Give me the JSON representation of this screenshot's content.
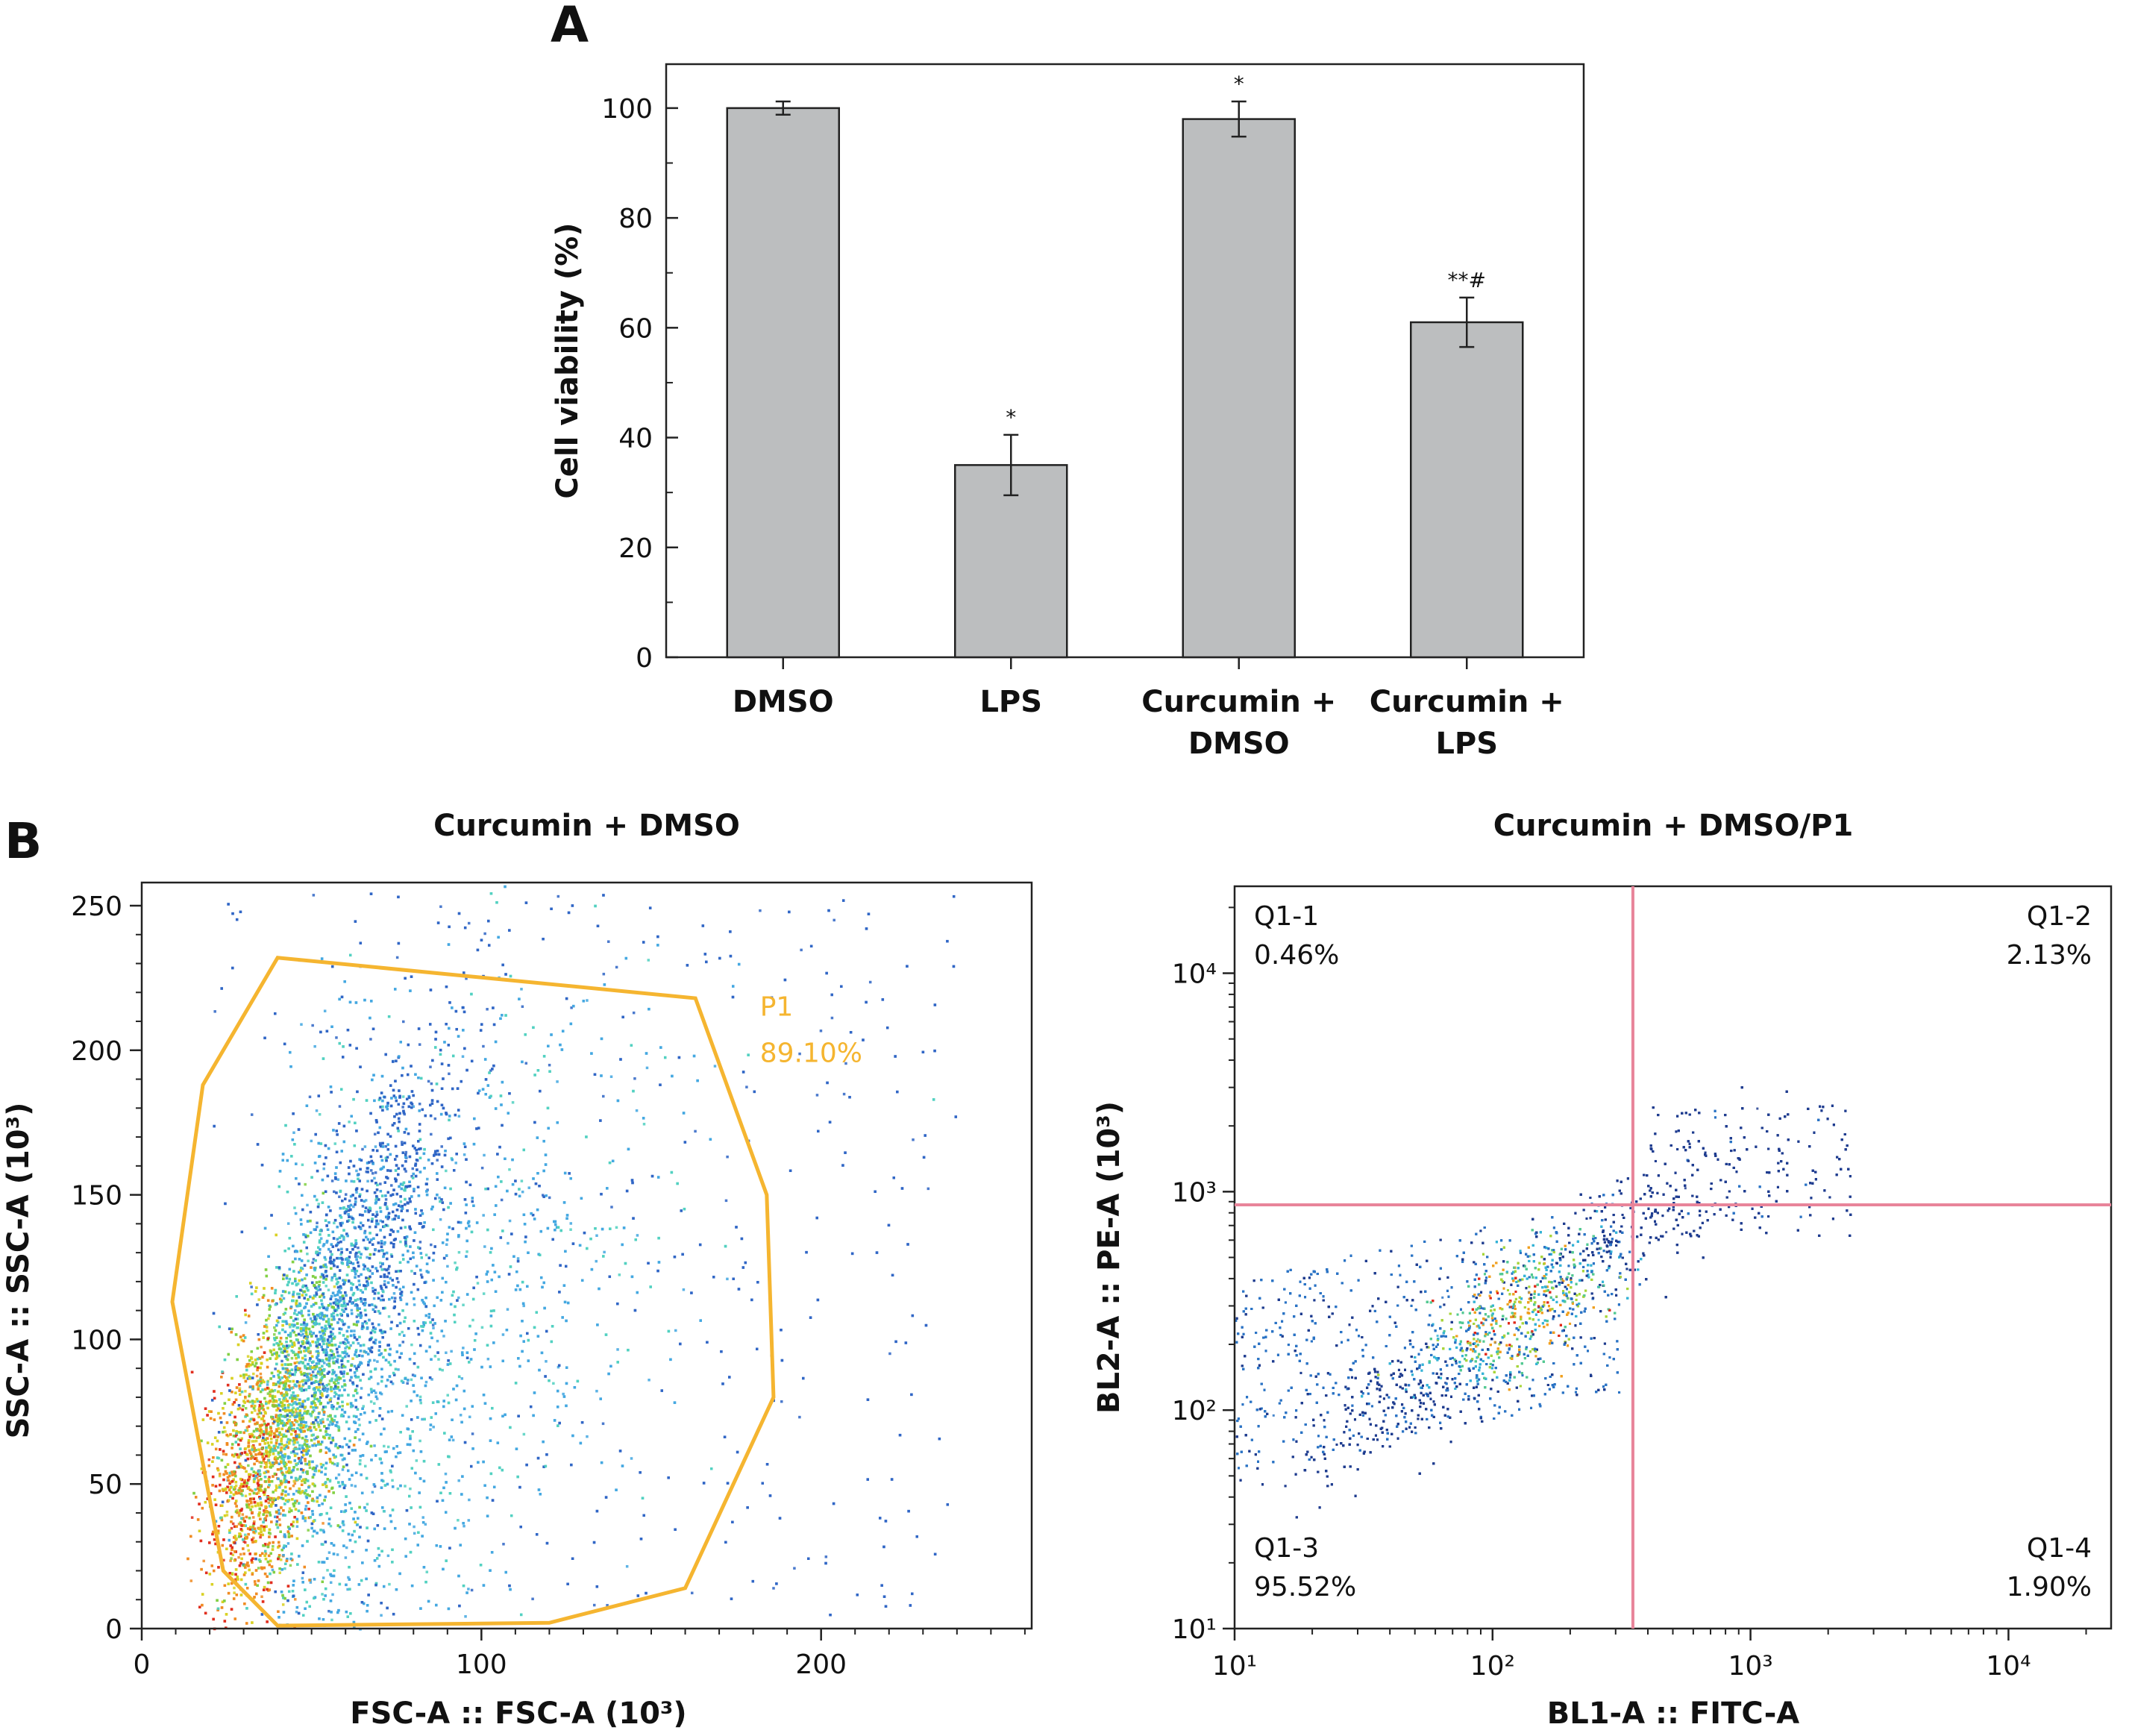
{
  "panels": {
    "a_label": "A",
    "b_label": "B"
  },
  "chart_data": [
    {
      "type": "bar",
      "panel": "A",
      "categories": [
        "DMSO",
        "LPS",
        "Curcumin + DMSO",
        "Curcumin + LPS"
      ],
      "category_lines": [
        [
          "DMSO"
        ],
        [
          "LPS"
        ],
        [
          "Curcumin +",
          "DMSO"
        ],
        [
          "Curcumin +",
          "LPS"
        ]
      ],
      "values": [
        100,
        35,
        98,
        61
      ],
      "errors": [
        1.2,
        5.5,
        3.2,
        4.5
      ],
      "annotations": [
        "",
        "*",
        "*",
        "**#"
      ],
      "ylabel": "Cell viability (%)",
      "ylim": [
        0,
        108
      ],
      "yticks": [
        0,
        20,
        40,
        60,
        80,
        100
      ],
      "bar_color": "#bcbebf",
      "grid": false
    },
    {
      "type": "scatter",
      "panel": "B-left",
      "title": "Curcumin + DMSO",
      "xlabel": "FSC-A :: FSC-A (10³)",
      "ylabel": "SSC-A :: SSC-A (10³)",
      "xlim": [
        0,
        262
      ],
      "ylim": [
        0,
        258
      ],
      "xticks": [
        0,
        100,
        200
      ],
      "yticks": [
        0,
        50,
        100,
        150,
        200,
        250
      ],
      "gate": {
        "name": "P1",
        "percent": "89.10%",
        "color": "#f5b530",
        "vertices": [
          [
            40,
            232
          ],
          [
            163,
            218
          ],
          [
            184,
            150
          ],
          [
            186,
            80
          ],
          [
            160,
            14
          ],
          [
            120,
            2
          ],
          [
            40,
            1
          ],
          [
            24,
            20
          ],
          [
            9,
            113
          ],
          [
            18,
            188
          ]
        ]
      },
      "density_colors": [
        "#2c63c4",
        "#3fa6e0",
        "#4fd0c0",
        "#7fcf3f",
        "#d8d020",
        "#f08a1e",
        "#e02a1a"
      ]
    },
    {
      "type": "scatter",
      "panel": "B-right",
      "title": "Curcumin + DMSO/P1",
      "xlabel": "BL1-A :: FITC-A",
      "ylabel": "BL2-A :: PE-A (10³)",
      "xscale": "log",
      "yscale": "log",
      "xlim": [
        10,
        25000
      ],
      "ylim": [
        10,
        25000
      ],
      "xticks": [
        "10¹",
        "10²",
        "10³",
        "10⁴"
      ],
      "yticks": [
        "10¹",
        "10²",
        "10³",
        "10⁴"
      ],
      "quadrant_threshold": {
        "x": 350,
        "y": 870,
        "color": "#e8849a"
      },
      "quadrants": [
        {
          "name": "Q1-1",
          "percent": "0.46%",
          "position": "top-left"
        },
        {
          "name": "Q1-2",
          "percent": "2.13%",
          "position": "top-right"
        },
        {
          "name": "Q1-3",
          "percent": "95.52%",
          "position": "bottom-left"
        },
        {
          "name": "Q1-4",
          "percent": "1.90%",
          "position": "bottom-right"
        }
      ],
      "density_colors": [
        "#1f3c8f",
        "#2a73c4",
        "#35b3d6",
        "#53c992",
        "#a7d53b",
        "#f0a020",
        "#e02a1a"
      ]
    }
  ]
}
